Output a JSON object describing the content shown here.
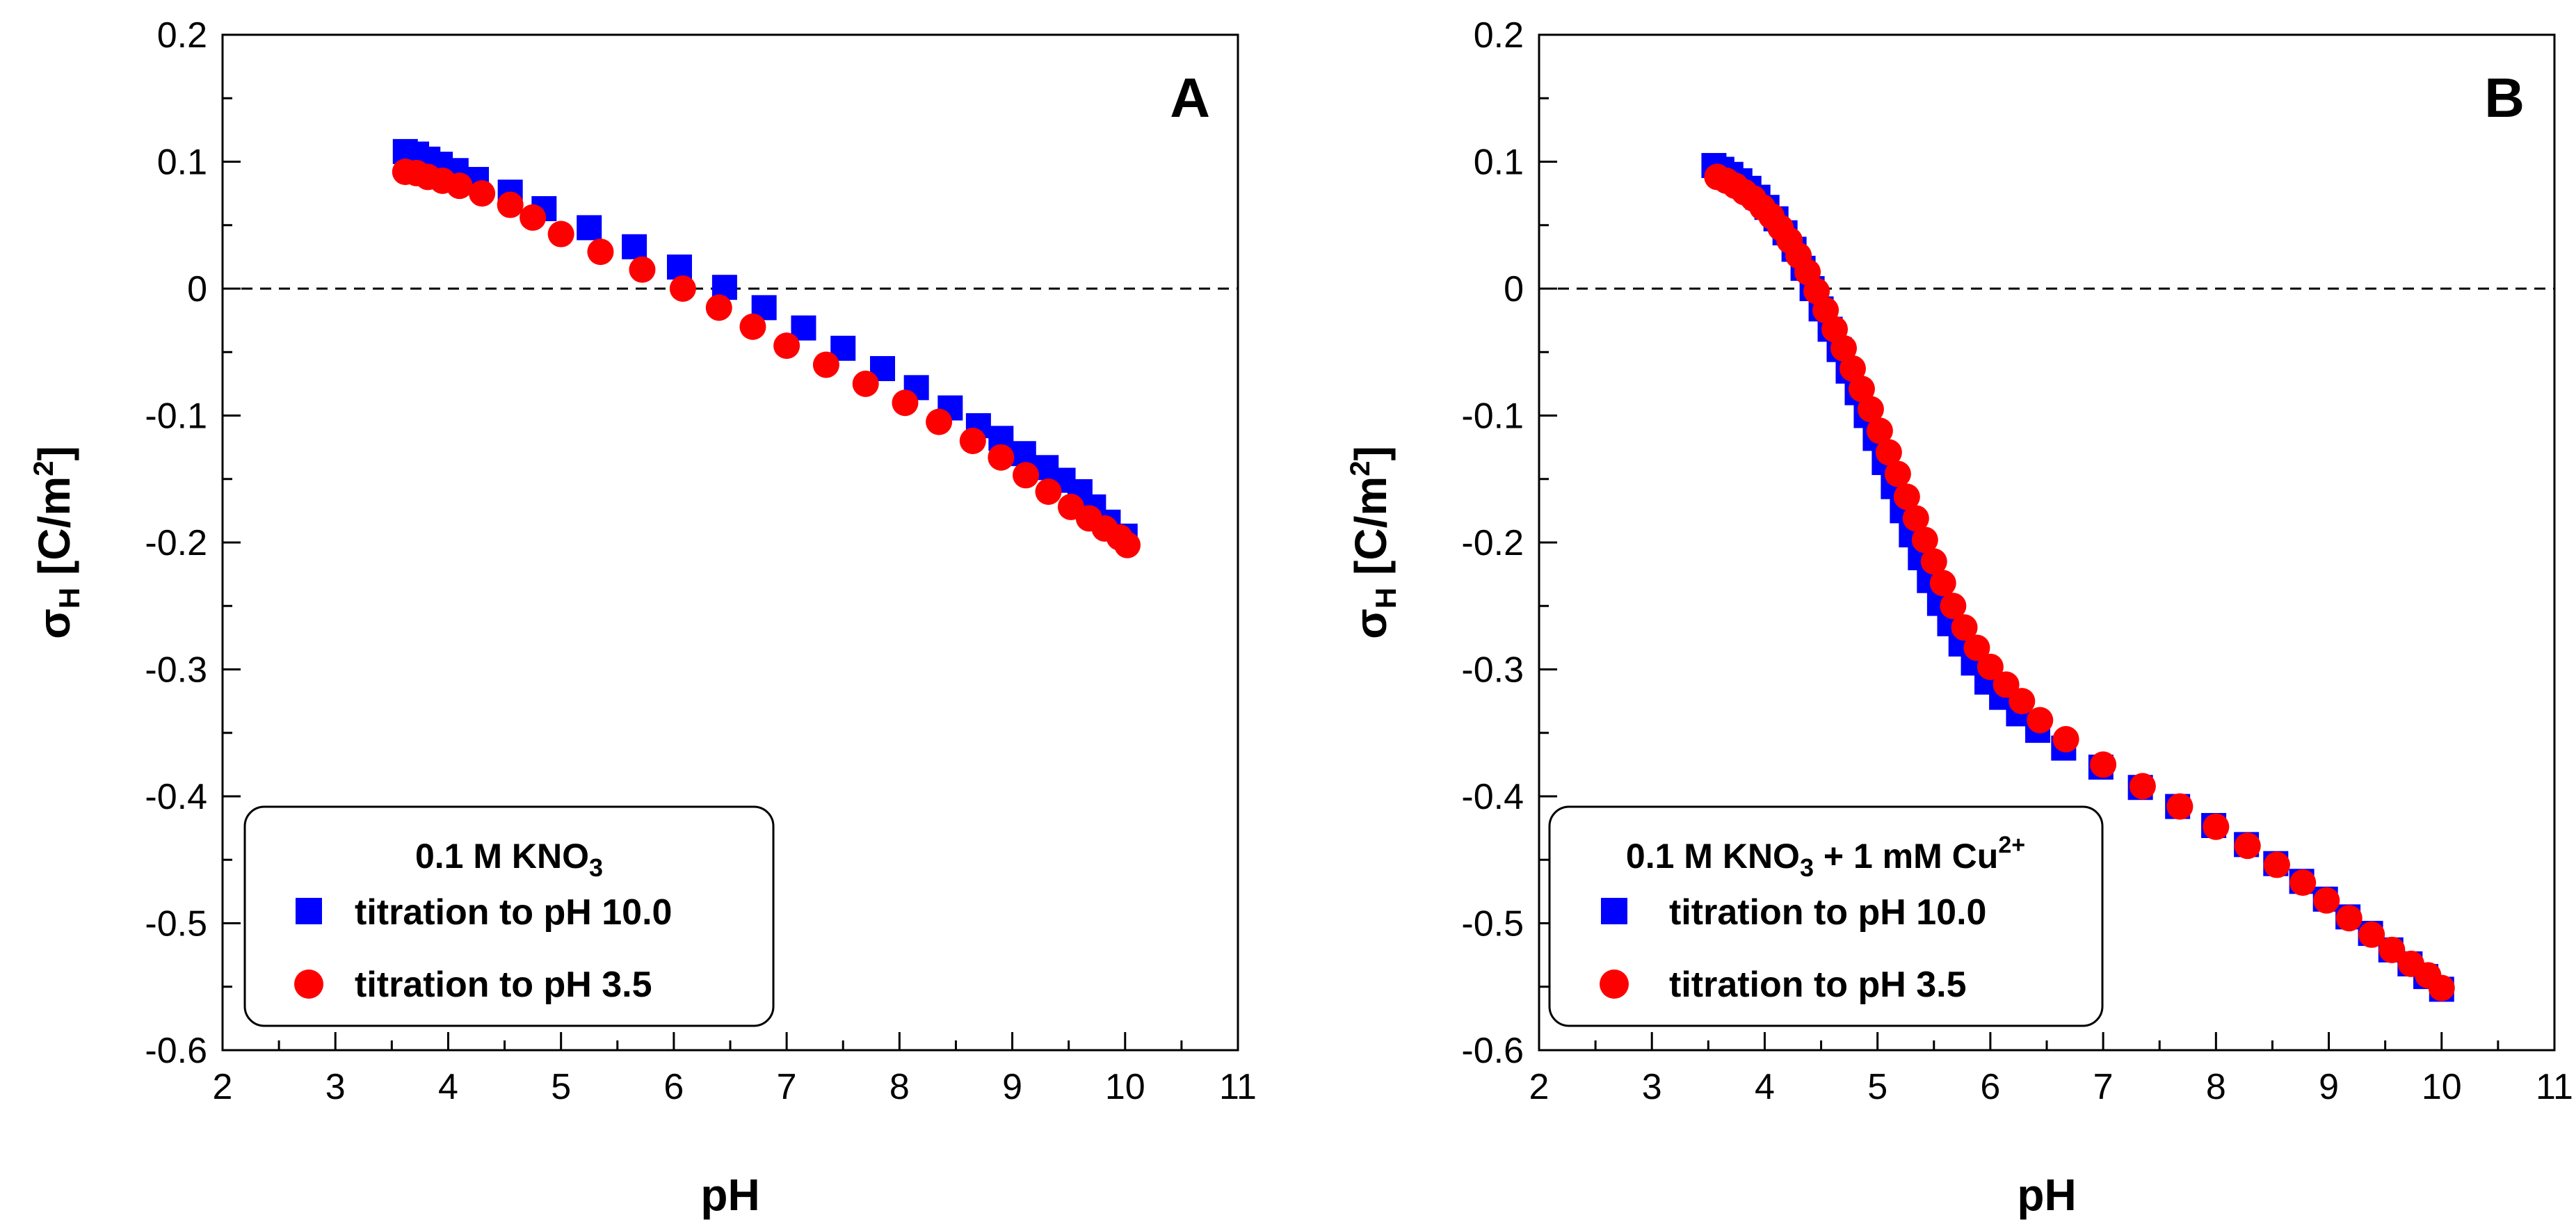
{
  "chart_data": [
    {
      "type": "scatter",
      "panel_letter": "A",
      "xlabel": "pH",
      "ylabel_symbol": "σ",
      "ylabel_subscript": "H",
      "ylabel_unit_pre": " [C/m",
      "ylabel_unit_sup": "2",
      "ylabel_unit_post": "]",
      "xlim": [
        2,
        11
      ],
      "ylim": [
        -0.6,
        0.2
      ],
      "xticks": [
        2,
        3,
        4,
        5,
        6,
        7,
        8,
        9,
        10,
        11
      ],
      "xtick_labels": [
        "2",
        "3",
        "4",
        "5",
        "6",
        "7",
        "8",
        "9",
        "10",
        "11"
      ],
      "yticks": [
        0.2,
        0.1,
        0,
        -0.1,
        -0.2,
        -0.3,
        -0.4,
        -0.5,
        -0.6
      ],
      "ytick_labels": [
        "0.2",
        "0.1",
        "0",
        "-0.1",
        "-0.2",
        "-0.3",
        "-0.4",
        "-0.5",
        "-0.6"
      ],
      "reference_line_y": 0,
      "legend": {
        "title_pre": "0.1 M KNO",
        "title_sub": "3",
        "title_post": "",
        "title_sup": "",
        "placement": "bottom-left"
      },
      "series": [
        {
          "name": "titration to pH 10.0",
          "marker": "square",
          "color": "#0000ff",
          "x": [
            3.62,
            3.72,
            3.82,
            3.93,
            4.07,
            4.25,
            4.55,
            4.85,
            5.25,
            5.65,
            6.05,
            6.45,
            6.8,
            7.15,
            7.5,
            7.85,
            8.15,
            8.45,
            8.7,
            8.9,
            9.1,
            9.3,
            9.45,
            9.6,
            9.72,
            9.85,
            10.0
          ],
          "y": [
            0.108,
            0.106,
            0.102,
            0.098,
            0.093,
            0.086,
            0.076,
            0.063,
            0.048,
            0.033,
            0.017,
            0.001,
            -0.015,
            -0.031,
            -0.047,
            -0.063,
            -0.078,
            -0.094,
            -0.108,
            -0.118,
            -0.13,
            -0.141,
            -0.151,
            -0.16,
            -0.172,
            -0.184,
            -0.195
          ]
        },
        {
          "name": "titration to pH 3.5",
          "marker": "circle",
          "color": "#ff0000",
          "x": [
            3.62,
            3.72,
            3.82,
            3.95,
            4.1,
            4.3,
            4.55,
            4.75,
            5.0,
            5.35,
            5.72,
            6.08,
            6.4,
            6.7,
            7.0,
            7.35,
            7.7,
            8.05,
            8.35,
            8.65,
            8.9,
            9.12,
            9.32,
            9.52,
            9.68,
            9.82,
            9.95,
            10.02
          ],
          "y": [
            0.092,
            0.091,
            0.088,
            0.085,
            0.081,
            0.075,
            0.066,
            0.056,
            0.043,
            0.029,
            0.015,
            0.0,
            -0.015,
            -0.03,
            -0.045,
            -0.06,
            -0.075,
            -0.09,
            -0.105,
            -0.12,
            -0.133,
            -0.147,
            -0.16,
            -0.172,
            -0.181,
            -0.189,
            -0.196,
            -0.202
          ]
        }
      ]
    },
    {
      "type": "scatter",
      "panel_letter": "B",
      "xlabel": "pH",
      "ylabel_symbol": "σ",
      "ylabel_subscript": "H",
      "ylabel_unit_pre": " [C/m",
      "ylabel_unit_sup": "2",
      "ylabel_unit_post": "]",
      "xlim": [
        2,
        11
      ],
      "ylim": [
        -0.6,
        0.2
      ],
      "xticks": [
        2,
        3,
        4,
        5,
        6,
        7,
        8,
        9,
        10,
        11
      ],
      "xtick_labels": [
        "2",
        "3",
        "4",
        "5",
        "6",
        "7",
        "8",
        "9",
        "10",
        "11"
      ],
      "yticks": [
        0.2,
        0.1,
        0,
        -0.1,
        -0.2,
        -0.3,
        -0.4,
        -0.5,
        -0.6
      ],
      "ytick_labels": [
        "0.2",
        "0.1",
        "0",
        "-0.1",
        "-0.2",
        "-0.3",
        "-0.4",
        "-0.5",
        "-0.6"
      ],
      "reference_line_y": 0,
      "legend": {
        "title_pre": "0.1 M KNO",
        "title_sub": "3",
        "title_post": " + 1 mM Cu",
        "title_sup": "2+",
        "placement": "bottom-left"
      },
      "series": [
        {
          "name": "titration to pH 10.0",
          "marker": "square",
          "color": "#0000ff",
          "x": [
            3.55,
            3.62,
            3.7,
            3.78,
            3.86,
            3.94,
            4.02,
            4.1,
            4.18,
            4.26,
            4.34,
            4.42,
            4.5,
            4.58,
            4.66,
            4.74,
            4.82,
            4.9,
            4.98,
            5.06,
            5.14,
            5.22,
            5.3,
            5.38,
            5.46,
            5.55,
            5.64,
            5.74,
            5.85,
            5.97,
            6.1,
            6.25,
            6.42,
            6.65,
            6.98,
            7.33,
            7.66,
            7.98,
            8.27,
            8.53,
            8.76,
            8.97,
            9.17,
            9.37,
            9.55,
            9.72,
            9.86,
            10.0
          ],
          "y": [
            0.097,
            0.094,
            0.09,
            0.085,
            0.079,
            0.072,
            0.064,
            0.055,
            0.044,
            0.031,
            0.016,
            0.0,
            -0.016,
            -0.032,
            -0.048,
            -0.065,
            -0.082,
            -0.1,
            -0.118,
            -0.137,
            -0.156,
            -0.175,
            -0.194,
            -0.212,
            -0.23,
            -0.248,
            -0.264,
            -0.28,
            -0.295,
            -0.31,
            -0.322,
            -0.335,
            -0.348,
            -0.362,
            -0.377,
            -0.393,
            -0.408,
            -0.423,
            -0.438,
            -0.453,
            -0.467,
            -0.481,
            -0.495,
            -0.508,
            -0.521,
            -0.532,
            -0.542,
            -0.552
          ]
        },
        {
          "name": "titration to pH 3.5",
          "marker": "circle",
          "color": "#ff0000",
          "x": [
            3.58,
            3.66,
            3.74,
            3.82,
            3.9,
            3.98,
            4.06,
            4.14,
            4.22,
            4.3,
            4.38,
            4.46,
            4.54,
            4.62,
            4.7,
            4.78,
            4.86,
            4.94,
            5.02,
            5.1,
            5.18,
            5.26,
            5.34,
            5.42,
            5.5,
            5.58,
            5.67,
            5.77,
            5.88,
            6.0,
            6.14,
            6.28,
            6.44,
            6.67,
            7.0,
            7.35,
            7.68,
            8.0,
            8.28,
            8.54,
            8.77,
            8.98,
            9.18,
            9.38,
            9.56,
            9.73,
            9.88,
            10.0
          ],
          "y": [
            0.088,
            0.085,
            0.081,
            0.076,
            0.071,
            0.064,
            0.057,
            0.048,
            0.038,
            0.026,
            0.013,
            -0.002,
            -0.017,
            -0.032,
            -0.047,
            -0.063,
            -0.079,
            -0.095,
            -0.112,
            -0.129,
            -0.146,
            -0.164,
            -0.181,
            -0.198,
            -0.215,
            -0.232,
            -0.25,
            -0.267,
            -0.283,
            -0.298,
            -0.312,
            -0.325,
            -0.34,
            -0.355,
            -0.375,
            -0.392,
            -0.408,
            -0.424,
            -0.439,
            -0.454,
            -0.468,
            -0.482,
            -0.496,
            -0.509,
            -0.521,
            -0.532,
            -0.541,
            -0.551
          ]
        }
      ]
    }
  ]
}
